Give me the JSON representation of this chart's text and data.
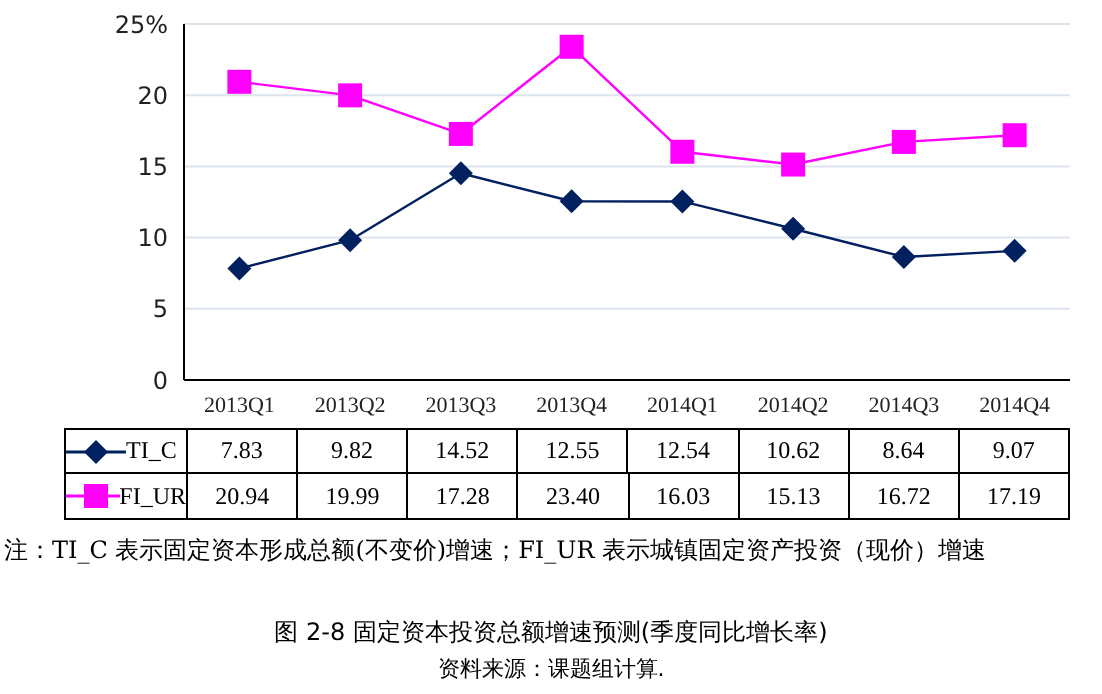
{
  "chart_data": {
    "type": "line",
    "title": "图 2-8 固定资本投资总额增速预测(季度同比增长率)",
    "categories": [
      "2013Q1",
      "2013Q2",
      "2013Q3",
      "2013Q4",
      "2014Q1",
      "2014Q2",
      "2014Q3",
      "2014Q4"
    ],
    "series": [
      {
        "name": "TI_C",
        "color": "#002060",
        "marker": "diamond",
        "values": [
          7.83,
          9.82,
          14.52,
          12.55,
          12.54,
          10.62,
          8.64,
          9.07
        ],
        "value_labels": [
          "7.83",
          "9.82",
          "14.52",
          "12.55",
          "12.54",
          "10.62",
          "8.64",
          "9.07"
        ]
      },
      {
        "name": "FI_UR",
        "color": "#ff00ff",
        "marker": "square",
        "values": [
          20.94,
          19.99,
          17.28,
          23.4,
          16.03,
          15.13,
          16.72,
          17.19
        ],
        "value_labels": [
          "20.94",
          "19.99",
          "17.28",
          "23.40",
          "16.03",
          "15.13",
          "16.72",
          "17.19"
        ]
      }
    ],
    "ylim": [
      0,
      25
    ],
    "yticks": [
      0,
      5,
      10,
      15,
      20,
      {
        "value": 25,
        "label": "25%"
      }
    ],
    "grid": "y",
    "legend": "bottom",
    "line_style": "solid",
    "annotations": [
      "注：TI_C 表示固定资本形成总额(不变价)增速；FI_UR 表示城镇固定资产投资（现价）增速",
      "资料来源：课题组计算."
    ]
  }
}
